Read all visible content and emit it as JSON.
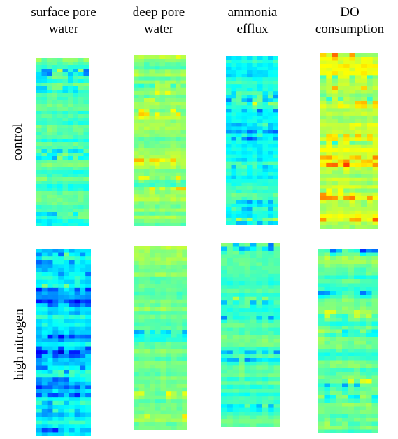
{
  "figure": {
    "column_headers": [
      {
        "line1": "surface pore",
        "line2": "water"
      },
      {
        "line1": "deep pore",
        "line2": "water"
      },
      {
        "line1": "ammonia",
        "line2": "efflux"
      },
      {
        "line1": "DO",
        "line2": "consumption"
      }
    ],
    "row_labels": [
      "control",
      "high nitrogen"
    ]
  },
  "chart_data": [
    {
      "type": "heatmap",
      "panel": "control / surface pore water",
      "colormap": "jet",
      "base_level": 0.45,
      "variability": 0.09,
      "blue_prob": 0.14,
      "warm_prob": 0.04
    },
    {
      "type": "heatmap",
      "panel": "control / deep pore water",
      "colormap": "jet",
      "base_level": 0.5,
      "variability": 0.08,
      "blue_prob": 0.06,
      "warm_prob": 0.1
    },
    {
      "type": "heatmap",
      "panel": "control / ammonia efflux",
      "colormap": "jet",
      "base_level": 0.42,
      "variability": 0.09,
      "blue_prob": 0.18,
      "warm_prob": 0.03
    },
    {
      "type": "heatmap",
      "panel": "control / DO consumption",
      "colormap": "jet",
      "base_level": 0.56,
      "variability": 0.09,
      "blue_prob": 0.08,
      "warm_prob": 0.2
    },
    {
      "type": "heatmap",
      "panel": "high nitrogen / surface pore water",
      "colormap": "jet",
      "base_level": 0.36,
      "variability": 0.11,
      "blue_prob": 0.32,
      "warm_prob": 0.03
    },
    {
      "type": "heatmap",
      "panel": "high nitrogen / deep pore water",
      "colormap": "jet",
      "base_level": 0.48,
      "variability": 0.07,
      "blue_prob": 0.06,
      "warm_prob": 0.06
    },
    {
      "type": "heatmap",
      "panel": "high nitrogen / ammonia efflux",
      "colormap": "jet",
      "base_level": 0.44,
      "variability": 0.07,
      "blue_prob": 0.1,
      "warm_prob": 0.02
    },
    {
      "type": "heatmap",
      "panel": "high nitrogen / DO consumption",
      "colormap": "jet",
      "base_level": 0.47,
      "variability": 0.09,
      "blue_prob": 0.14,
      "warm_prob": 0.1
    }
  ]
}
